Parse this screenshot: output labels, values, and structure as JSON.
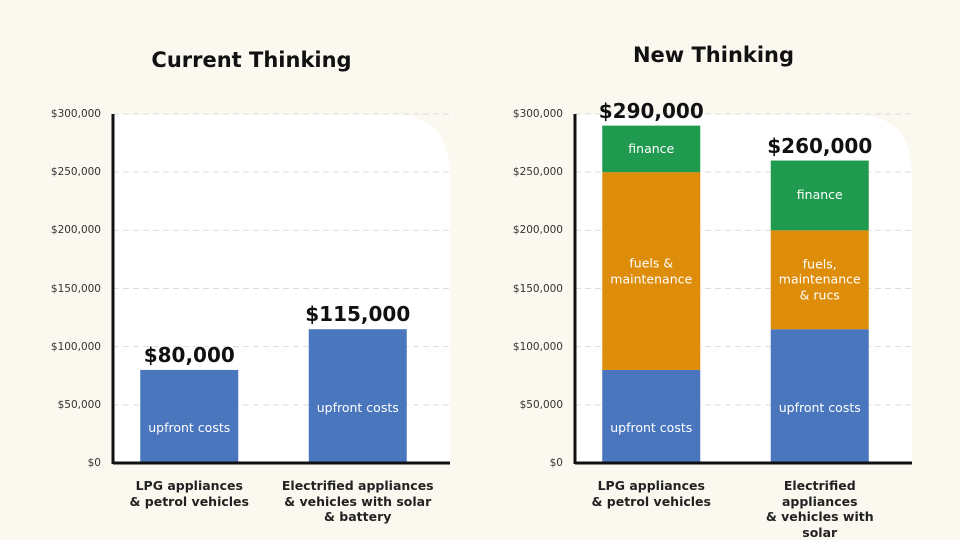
{
  "chart_data": [
    {
      "type": "bar",
      "title": "Current Thinking",
      "categories": [
        "LPG appliances\n& petrol vehicles",
        "Electrified appliances\n& vehicles with solar\n& battery"
      ],
      "series": [
        {
          "labels": [
            "upfront costs",
            "upfront costs"
          ],
          "color": "#4a76be",
          "values": [
            80000,
            115000
          ],
          "value_labels": [
            "$80,000",
            "$115,000"
          ]
        }
      ],
      "ylim": [
        0,
        300000
      ],
      "yticks": [
        {
          "value": 0,
          "label": "$0"
        },
        {
          "value": 50000,
          "label": "$50,000"
        },
        {
          "value": 100000,
          "label": "$100,000"
        },
        {
          "value": 150000,
          "label": "$150,000"
        },
        {
          "value": 200000,
          "label": "$200,000"
        },
        {
          "value": 250000,
          "label": "$250,000"
        },
        {
          "value": 300000,
          "label": "$300,000"
        }
      ],
      "grid": true
    },
    {
      "type": "stacked_bar",
      "title": "New Thinking",
      "categories": [
        "LPG appliances\n& petrol vehicles",
        "Electrified appliances\n& vehicles with solar\n& battery"
      ],
      "series": [
        {
          "labels": [
            "upfront costs",
            "upfront costs"
          ],
          "color": "#4a76be",
          "values": [
            80000,
            115000
          ]
        },
        {
          "labels": [
            "fuels &\nmaintenance",
            "fuels,\nmaintenance\n& rucs"
          ],
          "color": "#dd8d0a",
          "values": [
            170000,
            85000
          ]
        },
        {
          "labels": [
            "finance",
            "finance"
          ],
          "color": "#1f9a4f",
          "values": [
            40000,
            60000
          ]
        }
      ],
      "totals": [
        290000,
        260000
      ],
      "total_labels": [
        "$290,000",
        "$260,000"
      ],
      "ylim": [
        0,
        300000
      ],
      "yticks": [
        {
          "value": 0,
          "label": "$0"
        },
        {
          "value": 50000,
          "label": "$50,000"
        },
        {
          "value": 100000,
          "label": "$100,000"
        },
        {
          "value": 150000,
          "label": "$150,000"
        },
        {
          "value": 200000,
          "label": "$200,000"
        },
        {
          "value": 250000,
          "label": "$250,000"
        },
        {
          "value": 300000,
          "label": "$300,000"
        }
      ],
      "grid": true
    }
  ]
}
